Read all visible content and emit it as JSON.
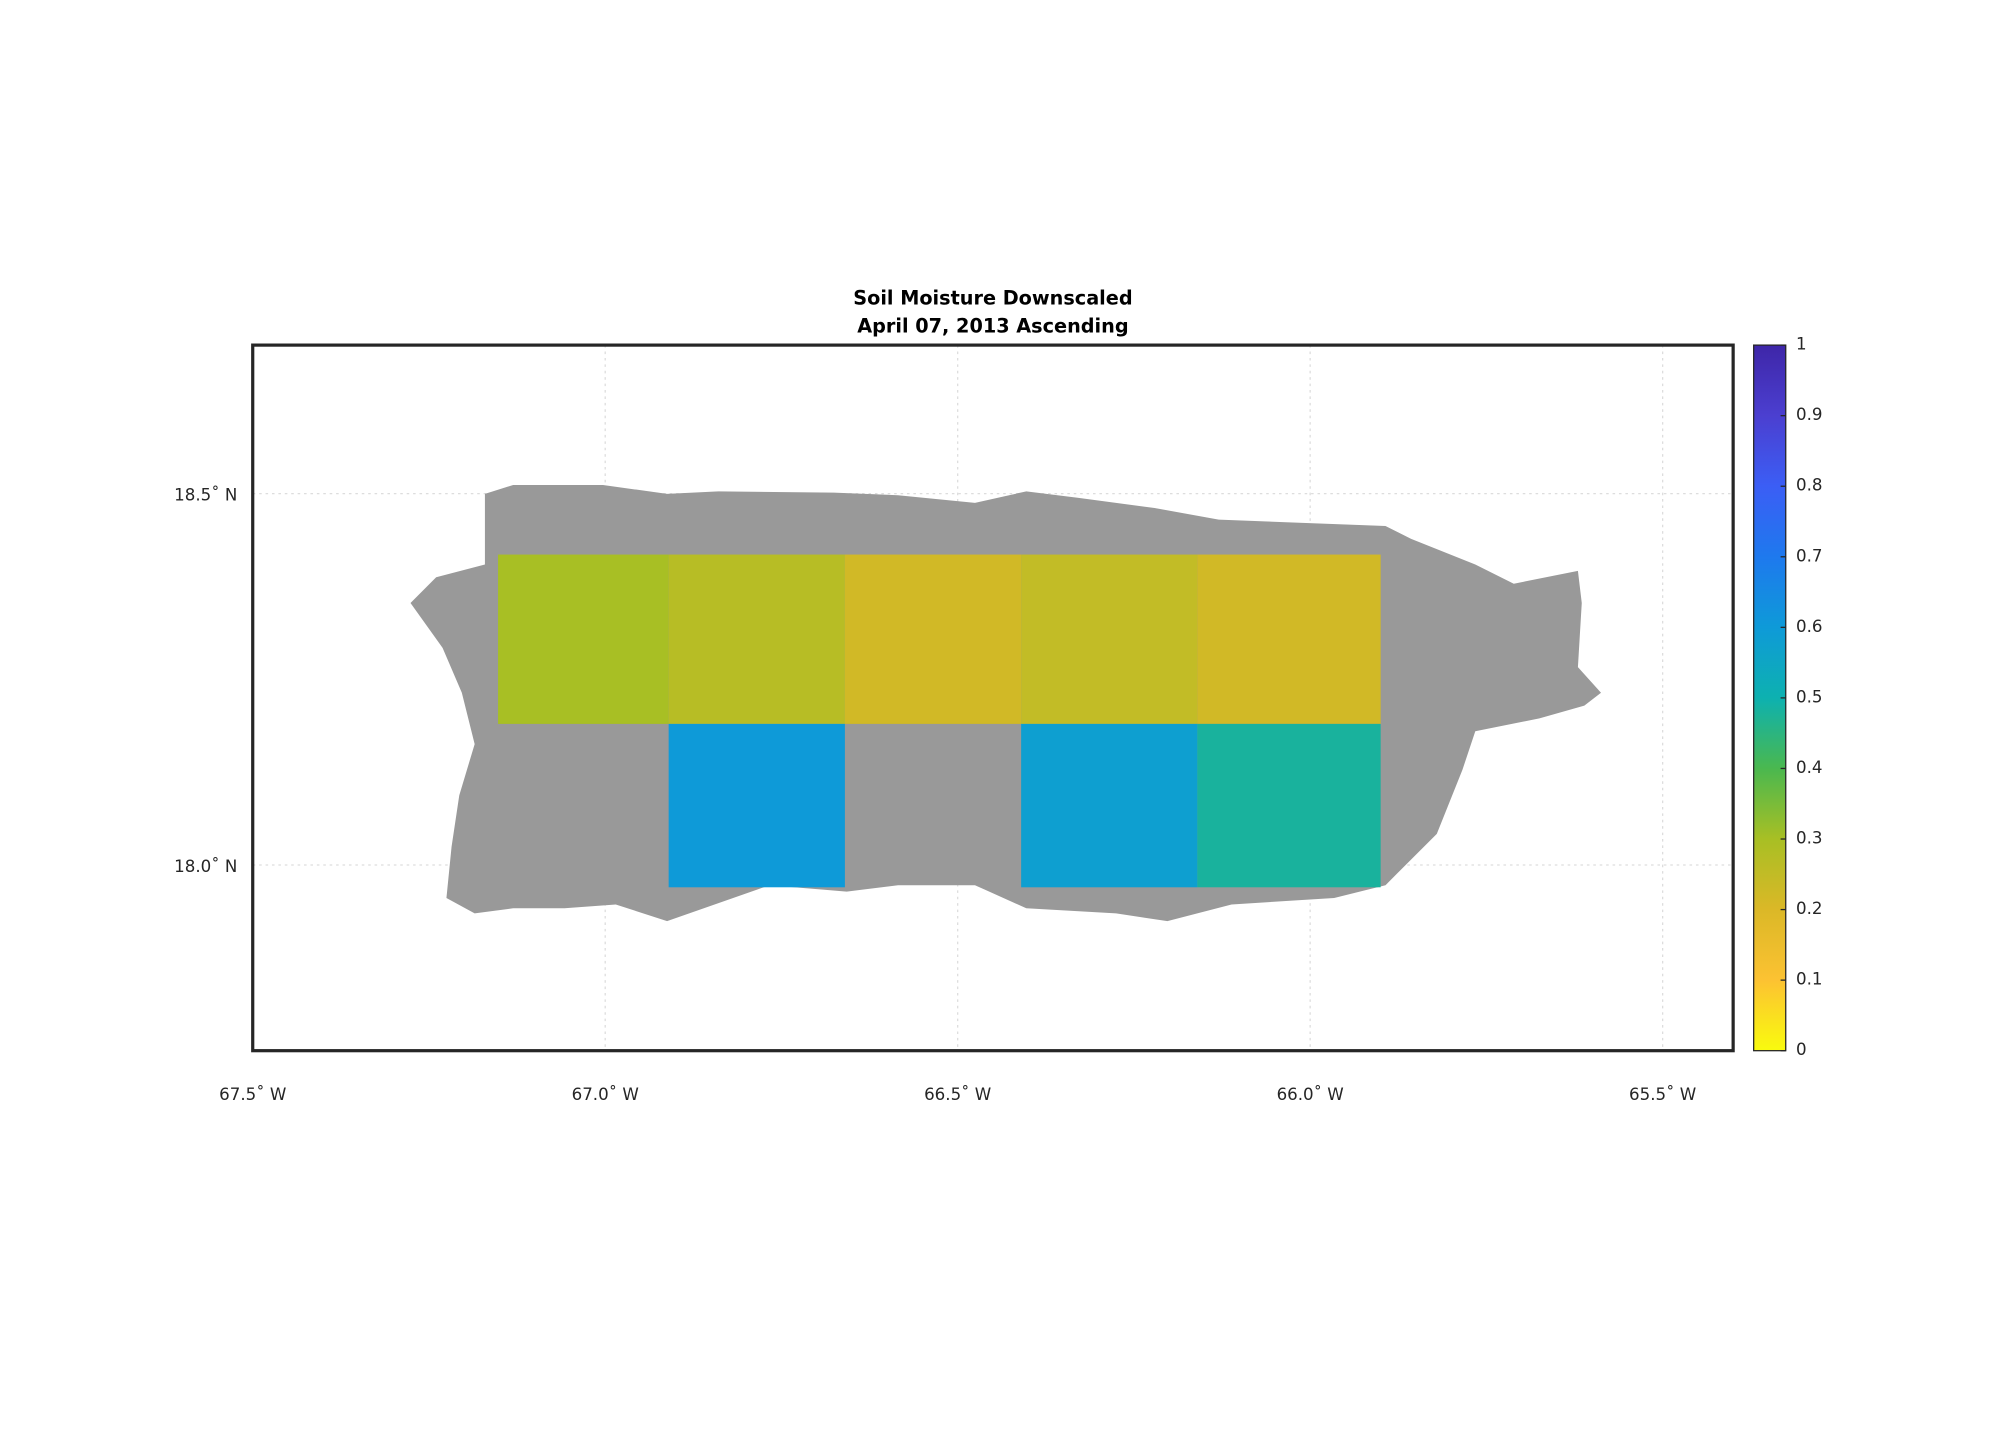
{
  "chart_data": {
    "type": "map",
    "title": "Soil Moisture Downscaled",
    "subtitle": "April 07, 2013 Ascending",
    "xlim": [
      -67.5,
      -65.4
    ],
    "ylim": [
      17.75,
      18.7
    ],
    "xticks": [
      {
        "value": -67.5,
        "label": "67.5˚ W"
      },
      {
        "value": -67.0,
        "label": "67.0˚ W"
      },
      {
        "value": -66.5,
        "label": "66.5˚ W"
      },
      {
        "value": -66.0,
        "label": "66.0˚ W"
      },
      {
        "value": -65.5,
        "label": "65.5˚ W"
      }
    ],
    "yticks": [
      {
        "value": 18.0,
        "label": "18.0˚ N"
      },
      {
        "value": 18.5,
        "label": "18.5˚ N"
      }
    ],
    "grid": true,
    "land_color": "#999999",
    "colorbar": {
      "lim": [
        0,
        1
      ],
      "ticks": [
        0,
        0.1,
        0.2,
        0.3,
        0.4,
        0.5,
        0.6,
        0.7,
        0.8,
        0.9,
        1
      ],
      "colormap": [
        "#f9fb0e",
        "#fcc232",
        "#dbb827",
        "#a8bf24",
        "#4ab84f",
        "#0db1b0",
        "#0e9ad8",
        "#1e79ee",
        "#3b5ef5",
        "#4b3fd0",
        "#3e26a8"
      ]
    },
    "tiles": [
      {
        "lon": [
          -67.152,
          -66.91
        ],
        "lat": [
          18.19,
          18.418
        ],
        "value": 0.3
      },
      {
        "lon": [
          -66.91,
          -66.66
        ],
        "lat": [
          18.19,
          18.418
        ],
        "value": 0.27
      },
      {
        "lon": [
          -66.66,
          -66.41
        ],
        "lat": [
          18.19,
          18.418
        ],
        "value": 0.22
      },
      {
        "lon": [
          -66.41,
          -66.16
        ],
        "lat": [
          18.19,
          18.418
        ],
        "value": 0.25
      },
      {
        "lon": [
          -66.16,
          -65.9
        ],
        "lat": [
          18.19,
          18.418
        ],
        "value": 0.22
      },
      {
        "lon": [
          -66.91,
          -66.66
        ],
        "lat": [
          17.97,
          18.19
        ],
        "value": 0.6
      },
      {
        "lon": [
          -66.41,
          -66.16
        ],
        "lat": [
          17.97,
          18.19
        ],
        "value": 0.58
      },
      {
        "lon": [
          -66.16,
          -65.9
        ],
        "lat": [
          17.97,
          18.19
        ],
        "value": 0.48
      }
    ]
  }
}
